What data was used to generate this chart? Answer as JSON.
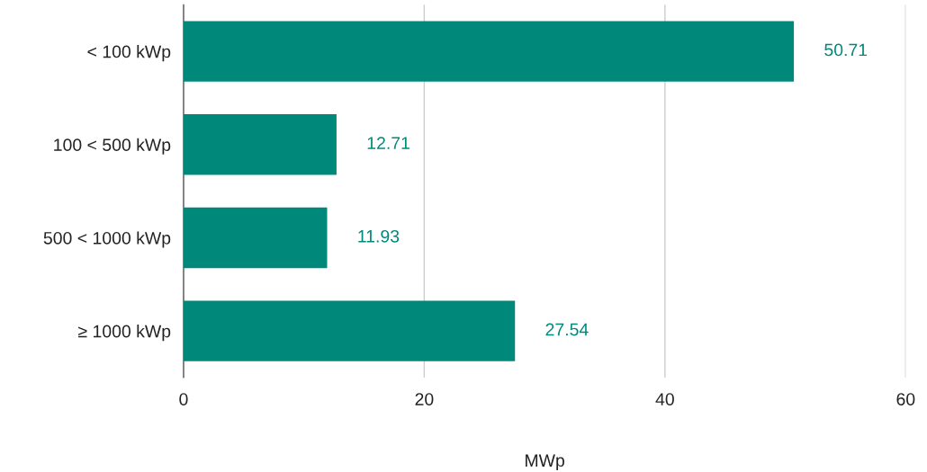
{
  "chart_data": {
    "type": "bar",
    "orientation": "horizontal",
    "xlabel": "MWp",
    "categories": [
      "< 100 kWp",
      "100 < 500 kWp",
      "500 < 1000 kWp",
      "≥ 1000 kWp"
    ],
    "values": [
      50.71,
      12.71,
      11.93,
      27.54
    ],
    "color": "#00897b",
    "xlim": [
      0,
      60
    ],
    "xticks": [
      0,
      20,
      40,
      60
    ],
    "grid": "x",
    "data_labels": true,
    "legend": false
  }
}
